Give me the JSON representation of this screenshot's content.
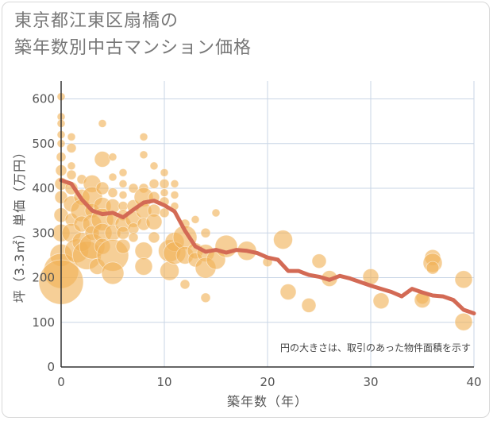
{
  "chart_data": {
    "type": "scatter",
    "title_lines": [
      "東京都江東区扇橋の",
      "築年数別中古マンション価格"
    ],
    "xlabel": "築年数（年）",
    "ylabel": "坪（3.3㎡）単価（万円）",
    "xlim": [
      0,
      40
    ],
    "ylim": [
      0,
      640
    ],
    "x_ticks": [
      0,
      10,
      20,
      30,
      40
    ],
    "y_ticks": [
      0,
      100,
      200,
      300,
      400,
      500,
      600
    ],
    "grid": true,
    "annotation": "円の大きさは、取引のあった物件面積を示す",
    "colors": {
      "bubble": "#f0b257",
      "line": "#d36a55",
      "grid": "#c9d6e6",
      "axis": "#333333"
    },
    "bubbles": [
      {
        "x": 0,
        "y": 605,
        "s": 5
      },
      {
        "x": 0,
        "y": 560,
        "s": 5
      },
      {
        "x": 0,
        "y": 545,
        "s": 5
      },
      {
        "x": 0,
        "y": 520,
        "s": 5
      },
      {
        "x": 0,
        "y": 500,
        "s": 5
      },
      {
        "x": 0,
        "y": 470,
        "s": 6
      },
      {
        "x": 0,
        "y": 440,
        "s": 7
      },
      {
        "x": 0,
        "y": 410,
        "s": 8
      },
      {
        "x": 0,
        "y": 380,
        "s": 8
      },
      {
        "x": 0,
        "y": 340,
        "s": 9
      },
      {
        "x": 0,
        "y": 300,
        "s": 11
      },
      {
        "x": 0,
        "y": 250,
        "s": 14
      },
      {
        "x": 0,
        "y": 215,
        "s": 22
      },
      {
        "x": 0,
        "y": 190,
        "s": 28
      },
      {
        "x": 1,
        "y": 515,
        "s": 5
      },
      {
        "x": 1,
        "y": 490,
        "s": 6
      },
      {
        "x": 1,
        "y": 450,
        "s": 5
      },
      {
        "x": 1,
        "y": 430,
        "s": 6
      },
      {
        "x": 1,
        "y": 400,
        "s": 8
      },
      {
        "x": 1,
        "y": 365,
        "s": 10
      },
      {
        "x": 1,
        "y": 330,
        "s": 8
      },
      {
        "x": 1,
        "y": 300,
        "s": 12
      },
      {
        "x": 1.5,
        "y": 260,
        "s": 15
      },
      {
        "x": 2,
        "y": 420,
        "s": 6
      },
      {
        "x": 2,
        "y": 380,
        "s": 10
      },
      {
        "x": 2,
        "y": 350,
        "s": 14
      },
      {
        "x": 2,
        "y": 320,
        "s": 10
      },
      {
        "x": 2,
        "y": 280,
        "s": 12
      },
      {
        "x": 2.5,
        "y": 250,
        "s": 18
      },
      {
        "x": 3,
        "y": 410,
        "s": 11
      },
      {
        "x": 3,
        "y": 380,
        "s": 13
      },
      {
        "x": 3,
        "y": 350,
        "s": 9
      },
      {
        "x": 3,
        "y": 320,
        "s": 12
      },
      {
        "x": 3,
        "y": 300,
        "s": 9
      },
      {
        "x": 3,
        "y": 270,
        "s": 16
      },
      {
        "x": 3.5,
        "y": 225,
        "s": 10
      },
      {
        "x": 4,
        "y": 545,
        "s": 5
      },
      {
        "x": 4,
        "y": 465,
        "s": 10
      },
      {
        "x": 4,
        "y": 400,
        "s": 8
      },
      {
        "x": 4,
        "y": 360,
        "s": 11
      },
      {
        "x": 4,
        "y": 330,
        "s": 14
      },
      {
        "x": 4,
        "y": 300,
        "s": 12
      },
      {
        "x": 4,
        "y": 270,
        "s": 10
      },
      {
        "x": 5,
        "y": 470,
        "s": 5
      },
      {
        "x": 5,
        "y": 425,
        "s": 5
      },
      {
        "x": 5,
        "y": 390,
        "s": 6
      },
      {
        "x": 5,
        "y": 360,
        "s": 9
      },
      {
        "x": 5,
        "y": 330,
        "s": 8
      },
      {
        "x": 5,
        "y": 300,
        "s": 10
      },
      {
        "x": 5,
        "y": 250,
        "s": 20
      },
      {
        "x": 5,
        "y": 210,
        "s": 14
      },
      {
        "x": 6,
        "y": 435,
        "s": 5
      },
      {
        "x": 6,
        "y": 410,
        "s": 5
      },
      {
        "x": 6,
        "y": 385,
        "s": 5
      },
      {
        "x": 6,
        "y": 360,
        "s": 6
      },
      {
        "x": 6,
        "y": 340,
        "s": 7
      },
      {
        "x": 6,
        "y": 320,
        "s": 10
      },
      {
        "x": 6,
        "y": 300,
        "s": 8
      },
      {
        "x": 6,
        "y": 270,
        "s": 9
      },
      {
        "x": 7,
        "y": 400,
        "s": 6
      },
      {
        "x": 7,
        "y": 360,
        "s": 8
      },
      {
        "x": 7,
        "y": 330,
        "s": 10
      },
      {
        "x": 7,
        "y": 310,
        "s": 7
      },
      {
        "x": 7,
        "y": 290,
        "s": 6
      },
      {
        "x": 8,
        "y": 515,
        "s": 5
      },
      {
        "x": 8,
        "y": 475,
        "s": 5
      },
      {
        "x": 8,
        "y": 400,
        "s": 6
      },
      {
        "x": 8,
        "y": 380,
        "s": 12
      },
      {
        "x": 8,
        "y": 350,
        "s": 10
      },
      {
        "x": 8,
        "y": 320,
        "s": 8
      },
      {
        "x": 8,
        "y": 260,
        "s": 11
      },
      {
        "x": 8,
        "y": 225,
        "s": 11
      },
      {
        "x": 9,
        "y": 450,
        "s": 5
      },
      {
        "x": 9,
        "y": 410,
        "s": 6
      },
      {
        "x": 9,
        "y": 380,
        "s": 7
      },
      {
        "x": 9,
        "y": 350,
        "s": 8
      },
      {
        "x": 9,
        "y": 325,
        "s": 10
      },
      {
        "x": 9,
        "y": 290,
        "s": 7
      },
      {
        "x": 10,
        "y": 435,
        "s": 5
      },
      {
        "x": 10,
        "y": 410,
        "s": 6
      },
      {
        "x": 10,
        "y": 390,
        "s": 5
      },
      {
        "x": 10,
        "y": 370,
        "s": 6
      },
      {
        "x": 10,
        "y": 345,
        "s": 6
      },
      {
        "x": 10.5,
        "y": 260,
        "s": 14
      },
      {
        "x": 10.5,
        "y": 215,
        "s": 12
      },
      {
        "x": 11,
        "y": 410,
        "s": 5
      },
      {
        "x": 11,
        "y": 385,
        "s": 5
      },
      {
        "x": 11,
        "y": 360,
        "s": 5
      },
      {
        "x": 11,
        "y": 280,
        "s": 12
      },
      {
        "x": 11,
        "y": 255,
        "s": 14
      },
      {
        "x": 12,
        "y": 320,
        "s": 6
      },
      {
        "x": 12,
        "y": 290,
        "s": 15
      },
      {
        "x": 12,
        "y": 250,
        "s": 11
      },
      {
        "x": 12,
        "y": 185,
        "s": 6
      },
      {
        "x": 13,
        "y": 330,
        "s": 5
      },
      {
        "x": 13,
        "y": 260,
        "s": 10
      },
      {
        "x": 13,
        "y": 240,
        "s": 9
      },
      {
        "x": 14,
        "y": 300,
        "s": 6
      },
      {
        "x": 14,
        "y": 255,
        "s": 11
      },
      {
        "x": 14,
        "y": 222,
        "s": 13
      },
      {
        "x": 14,
        "y": 155,
        "s": 6
      },
      {
        "x": 15,
        "y": 345,
        "s": 5
      },
      {
        "x": 15,
        "y": 240,
        "s": 12
      },
      {
        "x": 16,
        "y": 270,
        "s": 14
      },
      {
        "x": 18,
        "y": 260,
        "s": 12
      },
      {
        "x": 20,
        "y": 235,
        "s": 6
      },
      {
        "x": 21.5,
        "y": 285,
        "s": 12
      },
      {
        "x": 22,
        "y": 168,
        "s": 10
      },
      {
        "x": 24,
        "y": 138,
        "s": 9
      },
      {
        "x": 25,
        "y": 237,
        "s": 9
      },
      {
        "x": 26,
        "y": 198,
        "s": 10
      },
      {
        "x": 30,
        "y": 202,
        "s": 10
      },
      {
        "x": 31,
        "y": 148,
        "s": 10
      },
      {
        "x": 35,
        "y": 155,
        "s": 8
      },
      {
        "x": 35,
        "y": 150,
        "s": 10
      },
      {
        "x": 36,
        "y": 245,
        "s": 10
      },
      {
        "x": 36,
        "y": 233,
        "s": 12
      },
      {
        "x": 36,
        "y": 222,
        "s": 8
      },
      {
        "x": 39,
        "y": 196,
        "s": 11
      },
      {
        "x": 39,
        "y": 101,
        "s": 11
      }
    ],
    "trend": {
      "x": [
        0,
        1,
        2,
        3,
        4,
        5,
        6,
        7,
        8,
        9,
        10,
        11,
        12,
        13,
        14,
        15,
        16,
        17,
        18,
        19,
        20,
        21,
        22,
        23,
        24,
        25,
        26,
        27,
        28,
        29,
        30,
        31,
        32,
        33,
        34,
        35,
        36,
        37,
        38,
        39,
        40
      ],
      "y": [
        418,
        410,
        375,
        350,
        342,
        345,
        335,
        352,
        368,
        372,
        362,
        348,
        305,
        270,
        258,
        262,
        256,
        262,
        260,
        255,
        245,
        240,
        215,
        215,
        206,
        202,
        195,
        204,
        198,
        190,
        182,
        175,
        168,
        158,
        175,
        167,
        160,
        158,
        150,
        128,
        120
      ]
    }
  }
}
